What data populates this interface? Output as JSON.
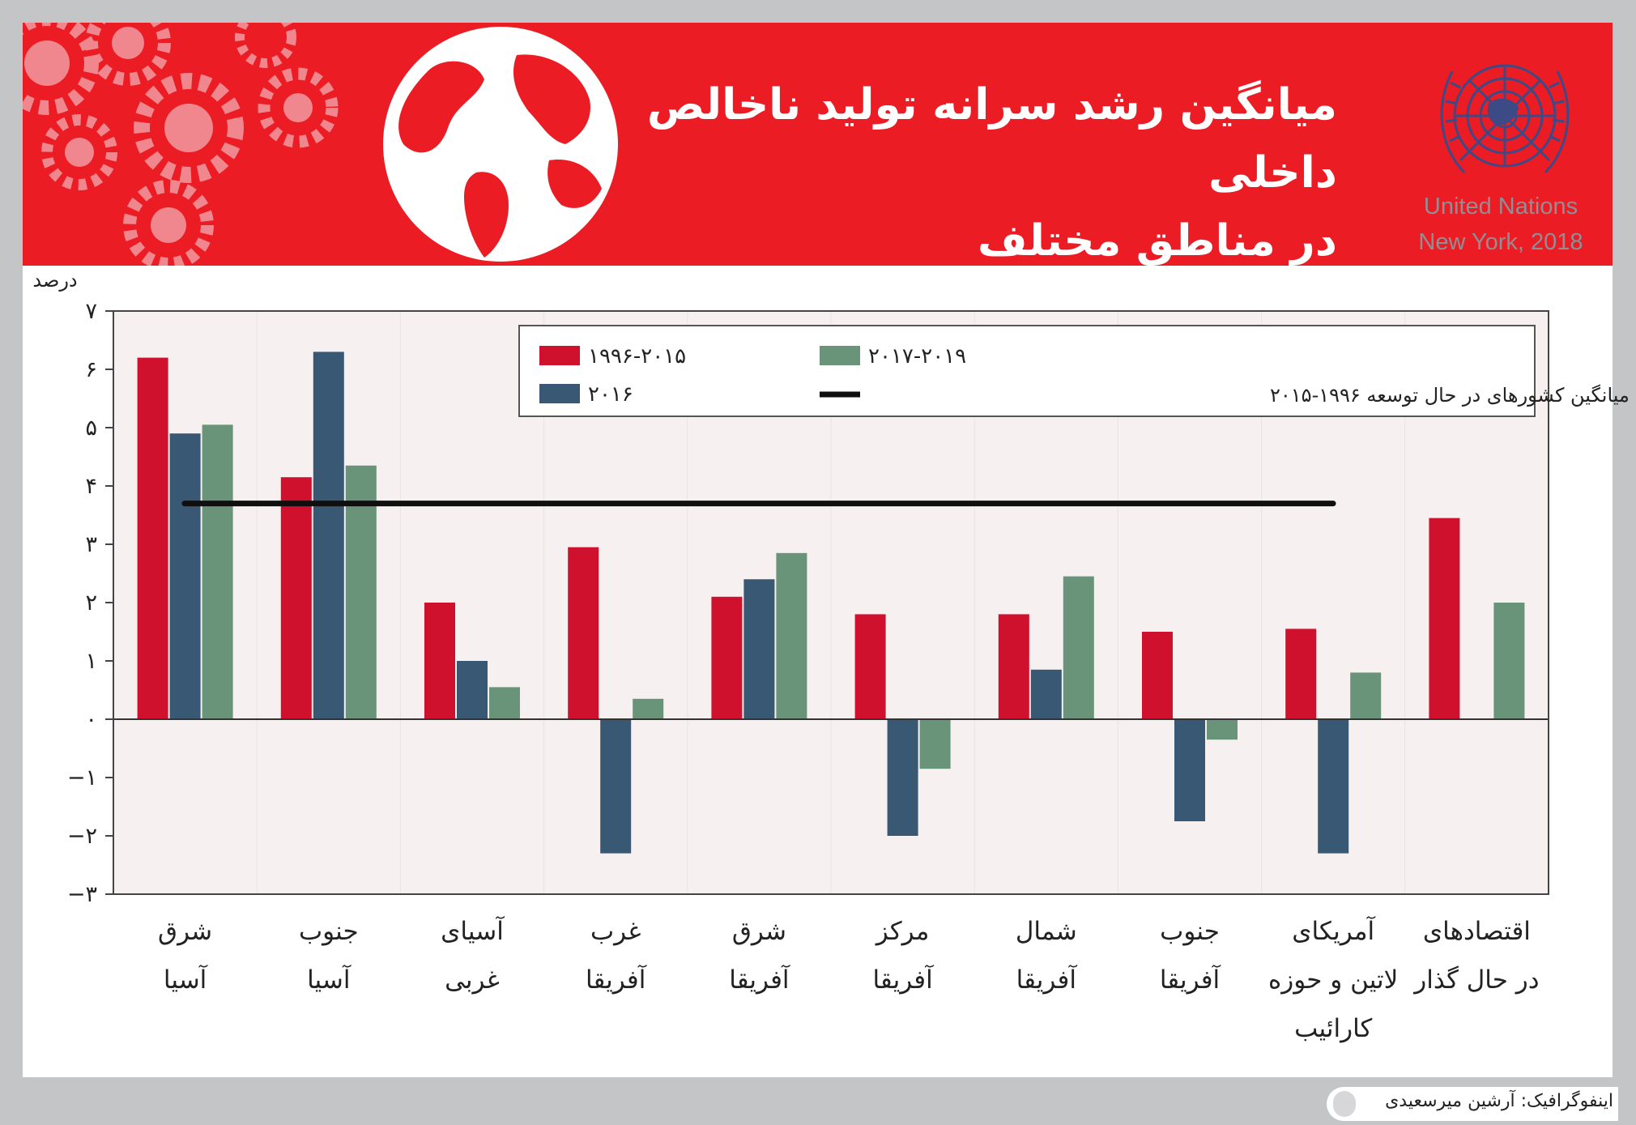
{
  "title_line1": "میانگین رشد سرانه تولید ناخالص داخلی",
  "title_line2": "در مناطق مختلف",
  "source_line1": "United Nations",
  "source_line2": "New York, 2018",
  "credit": "اینفوگرافیک: آرشین میرسعیدی",
  "colors": {
    "banner": "#ec1c24",
    "red": "#d0112e",
    "blue": "#395874",
    "green": "#6a9479",
    "plot_bg": "#f6f0f0"
  },
  "chart_data": {
    "type": "bar",
    "ylabel": "درصد",
    "ylim": [
      -3,
      7
    ],
    "yticks": [
      7,
      6,
      5,
      4,
      3,
      2,
      1,
      0,
      -1,
      -2,
      -3
    ],
    "ytick_labels": [
      "۷",
      "۶",
      "۵",
      "۴",
      "۳",
      "۲",
      "۱",
      "۰",
      "−۱",
      "−۲",
      "−۳"
    ],
    "categories": [
      [
        "شرق",
        "آسیا"
      ],
      [
        "جنوب",
        "آسیا"
      ],
      [
        "آسیای",
        "غربی"
      ],
      [
        "غرب",
        "آفریقا"
      ],
      [
        "شرق",
        "آفریقا"
      ],
      [
        "مرکز",
        "آفریقا"
      ],
      [
        "شمال",
        "آفریقا"
      ],
      [
        "جنوب",
        "آفریقا"
      ],
      [
        "آمریکای",
        "لاتین و حوزه",
        "کارائیب"
      ],
      [
        "اقتصادهای",
        "در حال گذار"
      ]
    ],
    "series": [
      {
        "name": "۱۹۹۶-۲۰۱۵",
        "color": "#d0112e",
        "values": [
          6.2,
          4.15,
          2.0,
          2.95,
          2.1,
          1.8,
          1.8,
          1.5,
          1.55,
          3.45
        ]
      },
      {
        "name": "۲۰۱۶",
        "color": "#395874",
        "values": [
          4.9,
          6.3,
          1.0,
          -2.3,
          2.4,
          -2.0,
          0.85,
          -1.75,
          -2.3,
          null
        ]
      },
      {
        "name": "۲۰۱۷-۲۰۱۹",
        "color": "#6a9479",
        "values": [
          5.05,
          4.35,
          0.55,
          0.35,
          2.85,
          -0.85,
          2.45,
          -0.35,
          0.8,
          2.0
        ]
      }
    ],
    "reference_line": {
      "name": "میانگین کشورهای در حال توسعه ۱۹۹۶-۲۰۱۵",
      "value": 3.7
    },
    "legend": "top-right",
    "grid": false
  }
}
